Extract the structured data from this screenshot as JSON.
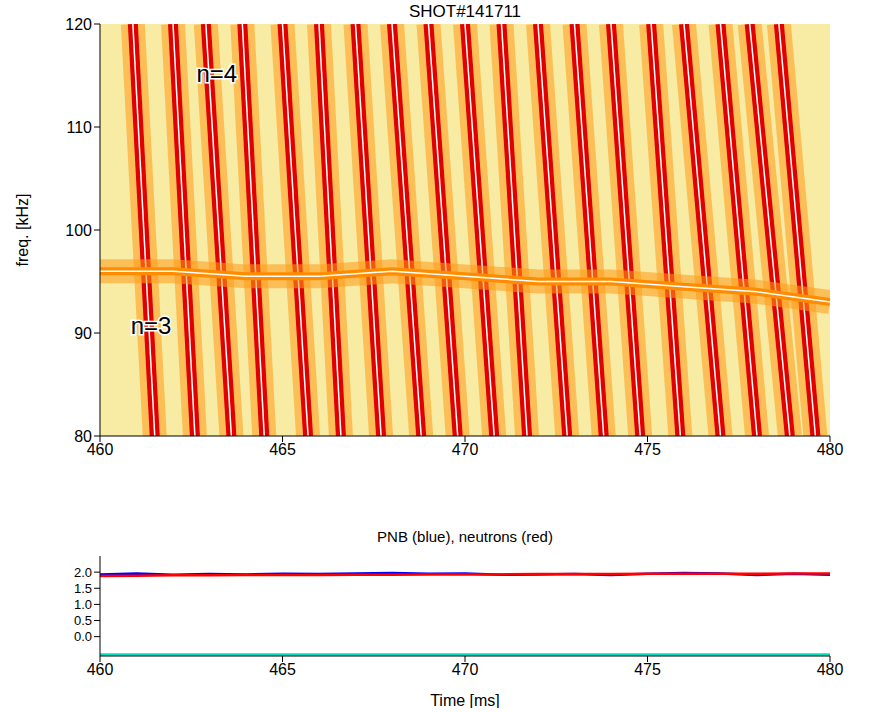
{
  "chart_data": [
    {
      "type": "spectrogram",
      "title": "SHOT#141711",
      "y_label": "freq. [kHz]",
      "xlim": [
        460,
        480
      ],
      "xticks": [
        460,
        465,
        470,
        475,
        480
      ],
      "ylim": [
        80,
        120
      ],
      "yticks": [
        80,
        90,
        100,
        110,
        120
      ],
      "color": "#e00000",
      "series": [
        {
          "x": [
            460.9,
            461.5
          ],
          "values": [
            120,
            80
          ]
        },
        {
          "x": [
            462.0,
            462.6
          ],
          "values": [
            120,
            80
          ]
        },
        {
          "x": [
            462.9,
            463.6
          ],
          "values": [
            120,
            80
          ]
        },
        {
          "x": [
            463.9,
            464.5
          ],
          "values": [
            120,
            80
          ]
        },
        {
          "x": [
            465.0,
            465.7
          ],
          "values": [
            120,
            80
          ]
        },
        {
          "x": [
            466.0,
            466.6
          ],
          "values": [
            120,
            80
          ]
        },
        {
          "x": [
            467.0,
            467.7
          ],
          "values": [
            120,
            80
          ]
        },
        {
          "x": [
            468.0,
            468.8
          ],
          "values": [
            120,
            80
          ]
        },
        {
          "x": [
            469.0,
            469.8
          ],
          "values": [
            120,
            80
          ]
        },
        {
          "x": [
            470.0,
            470.8
          ],
          "values": [
            120,
            80
          ]
        },
        {
          "x": [
            471.0,
            471.7
          ],
          "values": [
            120,
            80
          ]
        },
        {
          "x": [
            472.0,
            472.8
          ],
          "values": [
            120,
            80
          ]
        },
        {
          "x": [
            473.0,
            473.8
          ],
          "values": [
            120,
            80
          ]
        },
        {
          "x": [
            474.0,
            474.8
          ],
          "values": [
            120,
            80
          ]
        },
        {
          "x": [
            475.1,
            475.9
          ],
          "values": [
            120,
            80
          ]
        },
        {
          "x": [
            476.0,
            477.0
          ],
          "values": [
            120,
            80
          ]
        },
        {
          "x": [
            477.0,
            478.0
          ],
          "values": [
            120,
            80
          ]
        },
        {
          "x": [
            477.8,
            478.9
          ],
          "values": [
            120,
            80
          ]
        },
        {
          "x": [
            478.6,
            479.6
          ],
          "values": [
            120,
            80
          ]
        },
        {
          "x": [
            460,
            462,
            464,
            466,
            468,
            470,
            472,
            474,
            476,
            478,
            480
          ],
          "values": [
            96,
            96,
            95.5,
            95.5,
            96,
            95.5,
            95,
            95,
            94.5,
            94,
            93
          ],
          "color": "#ff8c00"
        }
      ],
      "annotations": [
        {
          "text": "n=4",
          "x": 463.2,
          "y": 115
        },
        {
          "text": "n=3",
          "x": 461.4,
          "y": 90.5
        }
      ]
    },
    {
      "type": "line",
      "title": "PNB (blue), neutrons (red)",
      "x_label": "Time [ms]",
      "xlim": [
        460,
        480
      ],
      "xticks": [
        460,
        465,
        470,
        475,
        480
      ],
      "ylim": [
        -0.6,
        2.5
      ],
      "yticks": [
        {
          "value": 0,
          "label": "0.0"
        },
        {
          "value": 0.5,
          "label": "0.5"
        },
        {
          "value": 1,
          "label": "1.0"
        },
        {
          "value": 1.5,
          "label": "1.5"
        },
        {
          "value": 2,
          "label": "2.0"
        }
      ],
      "x": [
        460,
        461,
        462,
        463,
        464,
        465,
        466,
        467,
        468,
        469,
        470,
        471,
        472,
        473,
        474,
        475,
        476,
        477,
        478,
        479,
        480
      ],
      "series": [
        {
          "color": "#0000ff",
          "values": [
            1.93,
            1.96,
            1.92,
            1.94,
            1.93,
            1.95,
            1.94,
            1.96,
            1.97,
            1.95,
            1.96,
            1.92,
            1.93,
            1.94,
            1.91,
            1.95,
            1.97,
            1.96,
            1.91,
            1.95,
            1.92
          ]
        },
        {
          "color": "#ff0000",
          "values": [
            1.88,
            1.89,
            1.9,
            1.9,
            1.91,
            1.91,
            1.91,
            1.92,
            1.92,
            1.93,
            1.93,
            1.93,
            1.94,
            1.94,
            1.94,
            1.95,
            1.95,
            1.95,
            1.95,
            1.96,
            1.96
          ]
        },
        {
          "color": "#00e0c0",
          "values": [
            -0.55,
            -0.55,
            -0.55,
            -0.55,
            -0.55,
            -0.55,
            -0.55,
            -0.55,
            -0.55,
            -0.55,
            -0.55,
            -0.55,
            -0.55,
            -0.55,
            -0.55,
            -0.55,
            -0.55,
            -0.55,
            -0.55,
            -0.55,
            -0.55
          ]
        }
      ]
    }
  ]
}
